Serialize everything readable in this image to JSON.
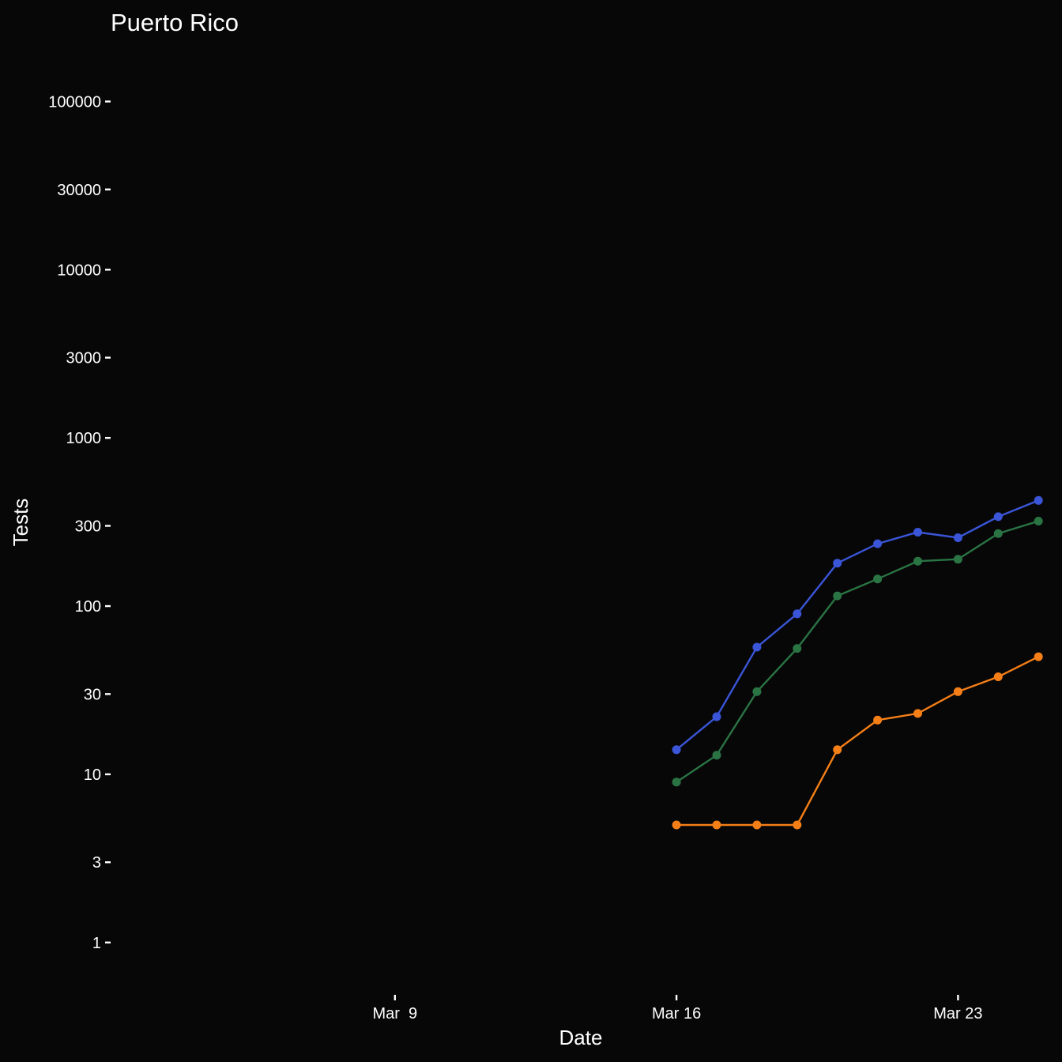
{
  "chart_data": {
    "type": "line",
    "title": "Puerto Rico",
    "xlabel": "Date",
    "ylabel": "Tests",
    "x_scale": "date",
    "y_scale": "log10",
    "xlim": [
      "2020-03-02",
      "2020-03-25"
    ],
    "ylim": [
      0.6,
      160000
    ],
    "x_ticks": [
      {
        "date": "2020-03-09",
        "label": "Mar  9"
      },
      {
        "date": "2020-03-16",
        "label": "Mar 16"
      },
      {
        "date": "2020-03-23",
        "label": "Mar 23"
      }
    ],
    "y_ticks": [
      {
        "value": 1,
        "label": "1"
      },
      {
        "value": 3,
        "label": "3"
      },
      {
        "value": 10,
        "label": "10"
      },
      {
        "value": 30,
        "label": "30"
      },
      {
        "value": 100,
        "label": "100"
      },
      {
        "value": 300,
        "label": "300"
      },
      {
        "value": 1000,
        "label": "1000"
      },
      {
        "value": 3000,
        "label": "3000"
      },
      {
        "value": 10000,
        "label": "10000"
      },
      {
        "value": 30000,
        "label": "30000"
      },
      {
        "value": 100000,
        "label": "100000"
      }
    ],
    "grid": false,
    "legend": "none",
    "x": [
      "2020-03-16",
      "2020-03-17",
      "2020-03-18",
      "2020-03-19",
      "2020-03-20",
      "2020-03-21",
      "2020-03-22",
      "2020-03-23",
      "2020-03-24",
      "2020-03-25"
    ],
    "series": [
      {
        "color": "#3a55d8",
        "values": [
          14,
          22,
          57,
          90,
          180,
          235,
          275,
          255,
          340,
          425
        ]
      },
      {
        "color": "#2a7444",
        "values": [
          9,
          13,
          31,
          56,
          115,
          145,
          185,
          190,
          270,
          320
        ]
      },
      {
        "color": "#f57f17",
        "values": [
          5,
          5,
          5,
          5,
          14,
          21,
          23,
          31,
          38,
          50
        ]
      }
    ]
  }
}
